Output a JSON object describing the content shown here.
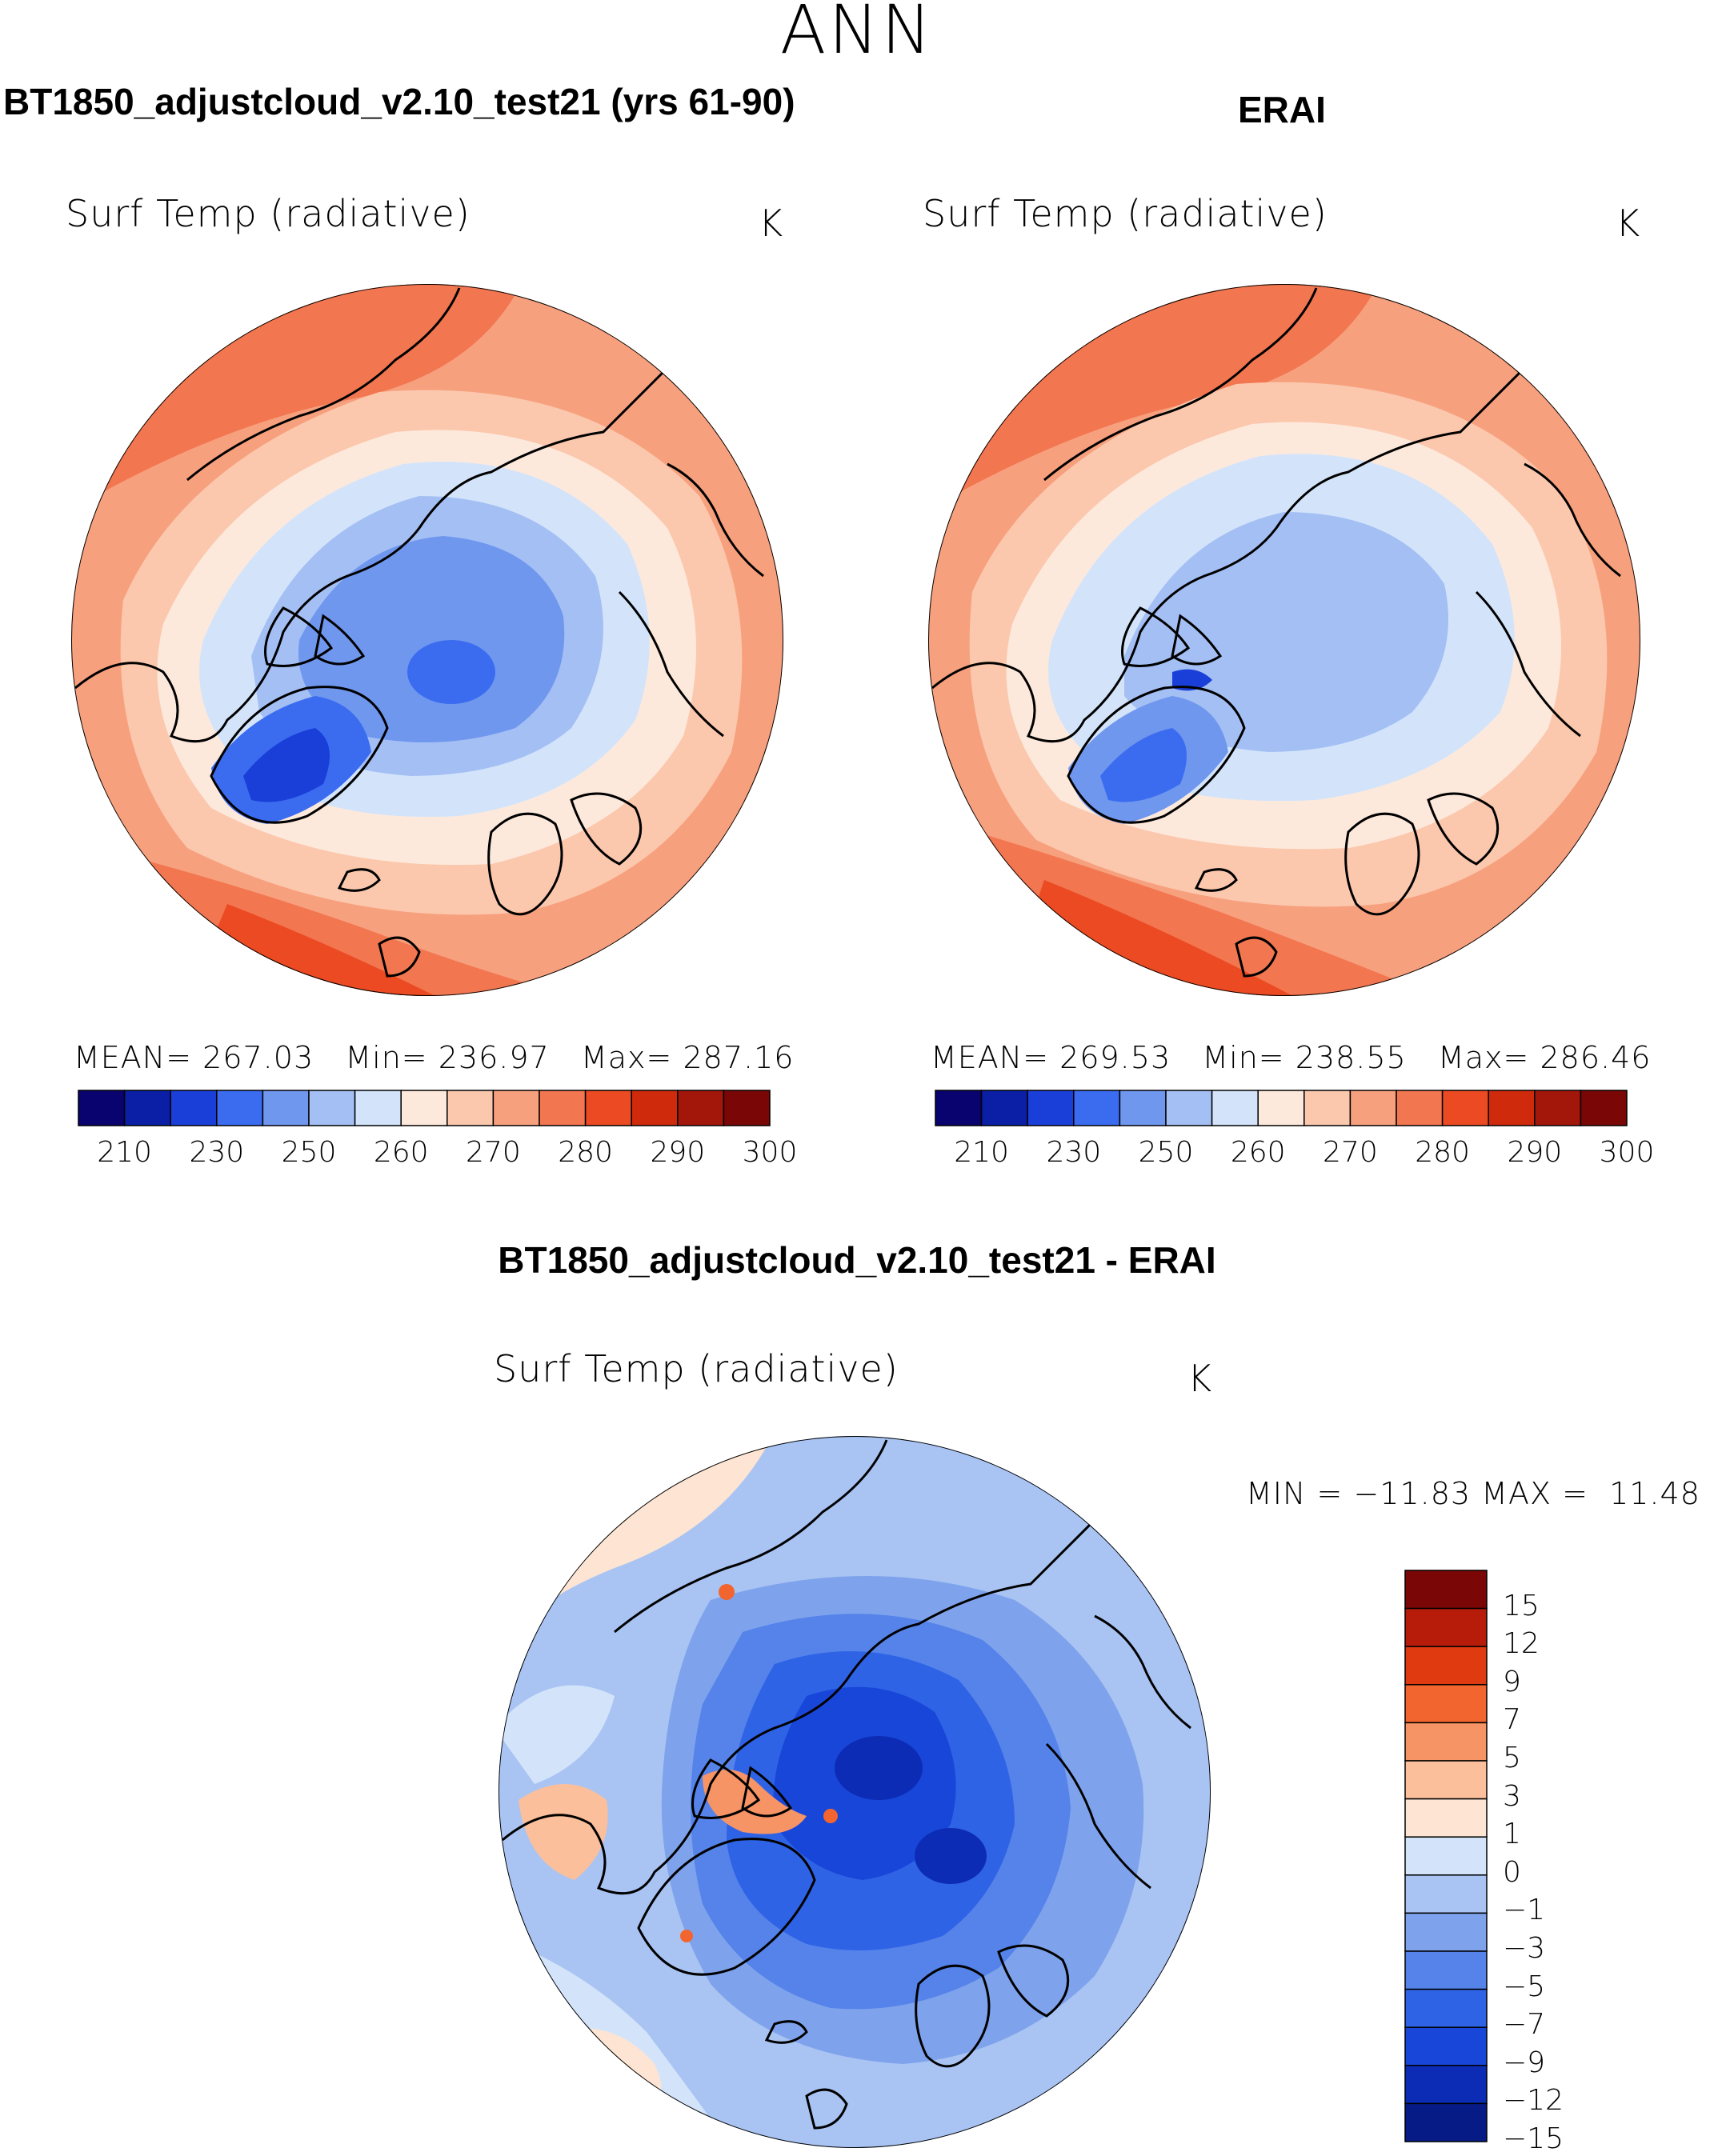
{
  "season_title": "ANN",
  "panels": [
    {
      "id": "model",
      "title": "BT1850_adjustcloud_v2.10_test21 (yrs 61-90)",
      "variable": "Surf Temp (radiative)",
      "units": "K",
      "stats": {
        "mean_label": "MEAN=",
        "mean": "267.03",
        "min_label": "Min=",
        "min": "236.97",
        "max_label": "Max=",
        "max": "287.16"
      }
    },
    {
      "id": "obs",
      "title": "ERAI",
      "variable": "Surf Temp (radiative)",
      "units": "K",
      "stats": {
        "mean_label": "MEAN=",
        "mean": "269.53",
        "min_label": "Min=",
        "min": "238.55",
        "max_label": "Max=",
        "max": "286.46"
      }
    },
    {
      "id": "diff",
      "title": "BT1850_adjustcloud_v2.10_test21 - ERAI",
      "variable": "Surf Temp (radiative)",
      "units": "K",
      "stats": {
        "min_label": "MIN =",
        "min": "−11.83",
        "max_label": "MAX =",
        "max": "11.48"
      }
    }
  ],
  "chart_data": [
    {
      "type": "heatmap",
      "projection": "north polar stereographic",
      "title": "BT1850_adjustcloud_v2.10_test21 (yrs 61-90)",
      "variable": "Surf Temp (radiative)",
      "units": "K",
      "mean": 267.03,
      "min": 236.97,
      "max": 287.16,
      "colorbar": {
        "tick_labels": [
          "210",
          "230",
          "250",
          "260",
          "270",
          "280",
          "290",
          "300"
        ],
        "colors": [
          "#08036e",
          "#0a1fa6",
          "#1a3fd8",
          "#3b6cf0",
          "#6f97ee",
          "#a4bff4",
          "#d3e4fa",
          "#fde9dc",
          "#fbc8ad",
          "#f7a07e",
          "#f27650",
          "#eb4a22",
          "#cf2a0c",
          "#a3160a",
          "#7a0606"
        ]
      }
    },
    {
      "type": "heatmap",
      "projection": "north polar stereographic",
      "title": "ERAI",
      "variable": "Surf Temp (radiative)",
      "units": "K",
      "mean": 269.53,
      "min": 238.55,
      "max": 286.46,
      "colorbar": {
        "tick_labels": [
          "210",
          "230",
          "250",
          "260",
          "270",
          "280",
          "290",
          "300"
        ],
        "colors": [
          "#08036e",
          "#0a1fa6",
          "#1a3fd8",
          "#3b6cf0",
          "#6f97ee",
          "#a4bff4",
          "#d3e4fa",
          "#fde9dc",
          "#fbc8ad",
          "#f7a07e",
          "#f27650",
          "#eb4a22",
          "#cf2a0c",
          "#a3160a",
          "#7a0606"
        ]
      }
    },
    {
      "type": "heatmap",
      "projection": "north polar stereographic",
      "title": "BT1850_adjustcloud_v2.10_test21 - ERAI",
      "variable": "Surf Temp (radiative)",
      "units": "K",
      "min": -11.83,
      "max": 11.48,
      "colorbar": {
        "tick_labels": [
          "15",
          "12",
          "9",
          "7",
          "5",
          "3",
          "1",
          "0",
          "−1",
          "−3",
          "−5",
          "−7",
          "−9",
          "−12",
          "−15"
        ],
        "colors": [
          "#7a0606",
          "#b71c0b",
          "#e03a10",
          "#f2652f",
          "#f79466",
          "#fbbf9b",
          "#fde4d3",
          "#d3e4fa",
          "#a9c4f3",
          "#7ea3ec",
          "#5583ea",
          "#2f63e6",
          "#1846d8",
          "#0c2cb5",
          "#071b87"
        ]
      }
    }
  ]
}
